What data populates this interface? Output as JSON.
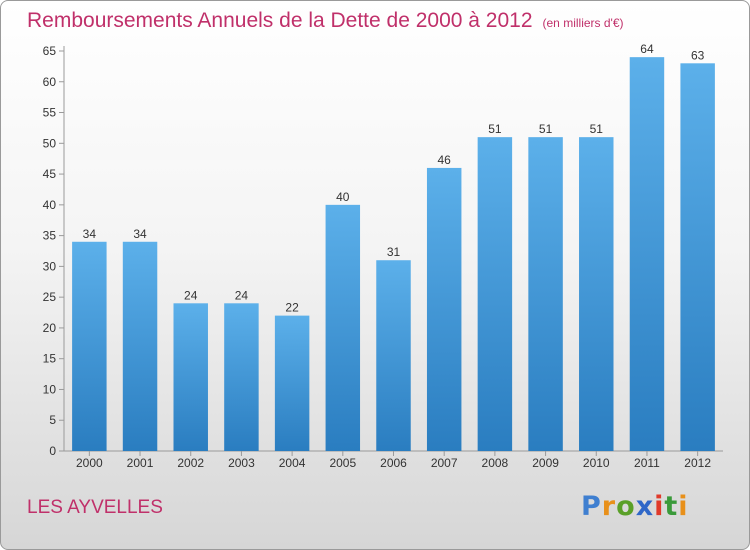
{
  "page": {
    "city": "LES AYVELLES",
    "logo": {
      "letters": [
        "P",
        "r",
        "o",
        "x",
        "i",
        "t",
        "i"
      ],
      "colors": [
        "#3f7fd0",
        "#e8901a",
        "#5aa028",
        "#2f67c8",
        "#e03a2a",
        "#3a9a3a",
        "#e8901a"
      ]
    }
  },
  "chart_data": {
    "type": "bar",
    "title": "Remboursements Annuels de la Dette de 2000 à 2012",
    "subtitle": "(en milliers d'€)",
    "xlabel": "",
    "ylabel": "",
    "categories": [
      "2000",
      "2001",
      "2002",
      "2003",
      "2004",
      "2005",
      "2006",
      "2007",
      "2008",
      "2009",
      "2010",
      "2011",
      "2012"
    ],
    "values": [
      34,
      34,
      24,
      24,
      22,
      40,
      31,
      46,
      51,
      51,
      51,
      64,
      63
    ],
    "ylim": [
      0,
      65
    ],
    "yticks": [
      0,
      5,
      10,
      15,
      20,
      25,
      30,
      35,
      40,
      45,
      50,
      55,
      60,
      65
    ],
    "grid": false,
    "colors": {
      "bar_top": "#5cb0ea",
      "bar_bottom": "#2a7dc0",
      "axis": "#9a9a9a"
    }
  }
}
